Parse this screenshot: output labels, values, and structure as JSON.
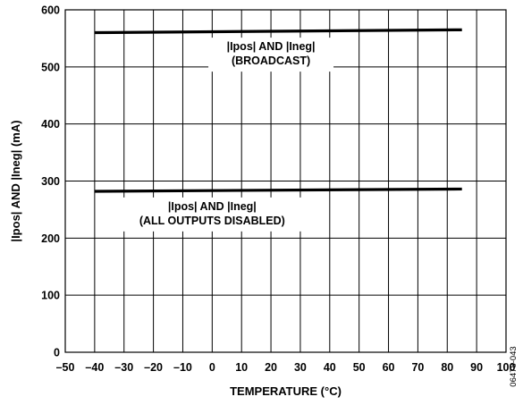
{
  "chart_data": {
    "type": "line",
    "xlabel": "TEMPERATURE (°C)",
    "ylabel": "|Ipos| AND |Ineg| (mA)",
    "xlim": [
      -50,
      100
    ],
    "ylim": [
      0,
      600
    ],
    "xticks": [
      "–50",
      "–40",
      "–30",
      "–20",
      "–10",
      "0",
      "10",
      "20",
      "30",
      "40",
      "50",
      "60",
      "70",
      "80",
      "90",
      "100"
    ],
    "yticks": [
      "0",
      "100",
      "200",
      "300",
      "400",
      "500",
      "600"
    ],
    "grid": true,
    "series": [
      {
        "name": "|Ipos| AND |Ineg| (BROADCAST)",
        "x": [
          -40,
          85
        ],
        "y": [
          560,
          565
        ]
      },
      {
        "name": "|Ipos| AND |Ineg| (ALL OUTPUTS DISABLED)",
        "x": [
          -40,
          85
        ],
        "y": [
          282,
          286
        ]
      }
    ],
    "annotations": [
      {
        "lines": [
          "|Ipos| AND |Ineg|",
          "(BROADCAST)"
        ]
      },
      {
        "lines": [
          "|Ipos| AND |Ineg|",
          "(ALL OUTPUTS DISABLED)"
        ]
      }
    ]
  },
  "figure_id": "06478-043"
}
